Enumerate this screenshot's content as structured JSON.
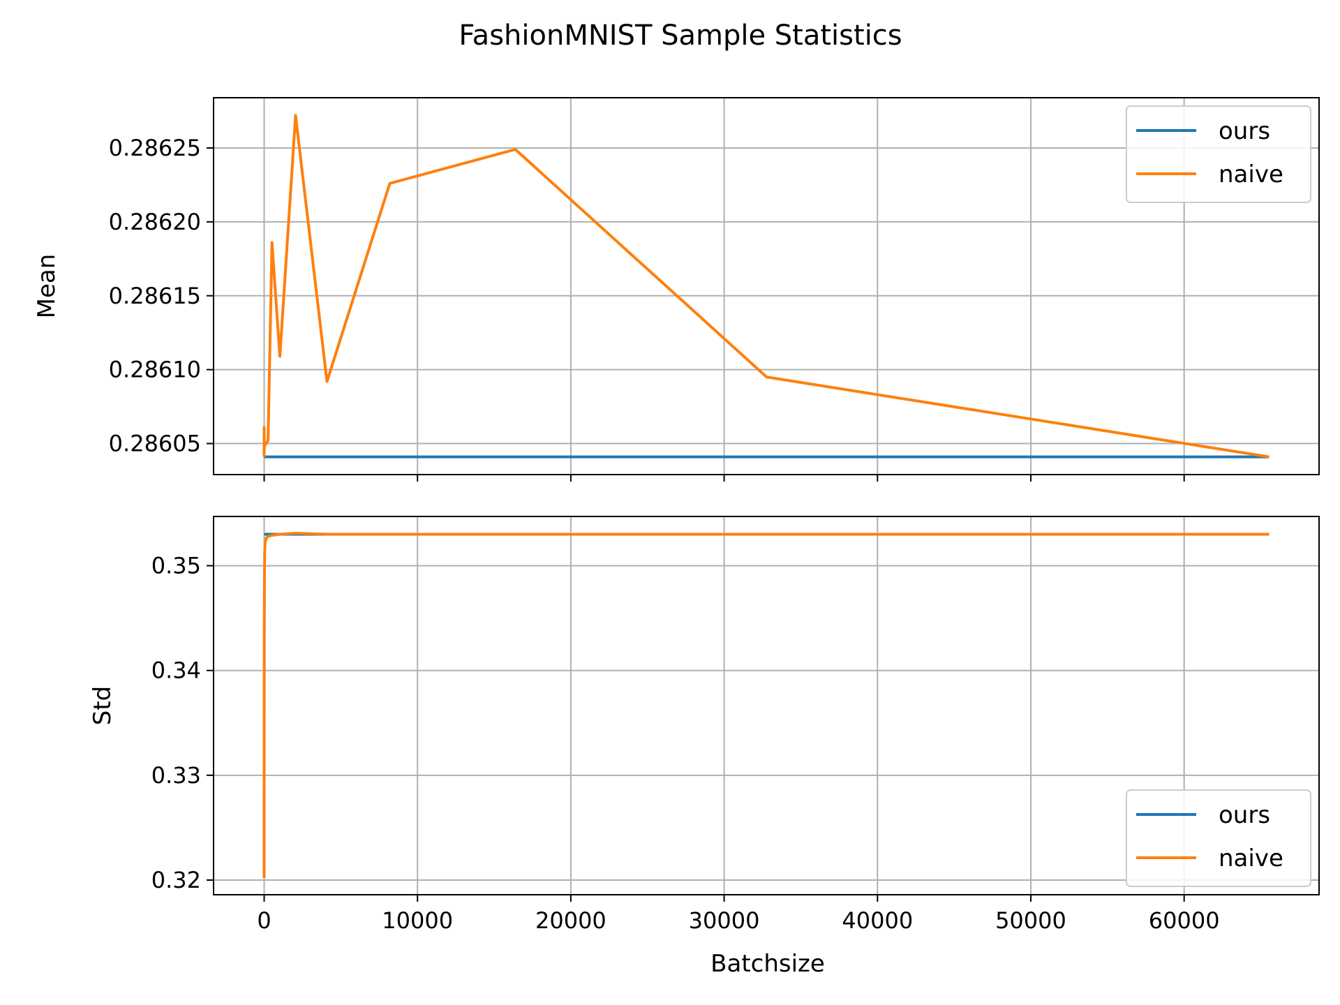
{
  "chart_data": {
    "type": "line",
    "title": "FashionMNIST Sample Statistics",
    "xlabel": "Batchsize",
    "xlim": [
      -3300,
      68800
    ],
    "xticks": [
      0,
      10000,
      20000,
      30000,
      40000,
      50000,
      60000
    ],
    "xtick_labels": [
      "0",
      "10000",
      "20000",
      "30000",
      "40000",
      "50000",
      "60000"
    ],
    "grid": true,
    "subplots": [
      {
        "ylabel": "Mean",
        "ylim": [
          0.286029,
          0.286284
        ],
        "yticks": [
          0.28605,
          0.2861,
          0.28615,
          0.2862,
          0.28625
        ],
        "ytick_labels": [
          "0.28605",
          "0.28610",
          "0.28615",
          "0.28620",
          "0.28625"
        ],
        "legend": "top-right",
        "series": [
          {
            "name": "ours",
            "color": "#1f77b4",
            "x": [
              1,
              65536
            ],
            "y": [
              0.286041,
              0.286041
            ]
          },
          {
            "name": "naive",
            "color": "#ff7f0e",
            "x": [
              1,
              2,
              4,
              8,
              16,
              32,
              64,
              128,
              256,
              512,
              1024,
              2048,
              4096,
              8192,
              16384,
              32768,
              65536
            ],
            "y": [
              0.286041,
              0.286061,
              0.286046,
              0.286052,
              0.286048,
              0.28605,
              0.286049,
              0.28605,
              0.286052,
              0.286186,
              0.286109,
              0.286272,
              0.286092,
              0.286226,
              0.286249,
              0.286095,
              0.286041
            ]
          }
        ]
      },
      {
        "ylabel": "Std",
        "ylim": [
          0.3186,
          0.3547
        ],
        "yticks": [
          0.32,
          0.33,
          0.34,
          0.35
        ],
        "ytick_labels": [
          "0.32",
          "0.33",
          "0.34",
          "0.35"
        ],
        "legend": "bottom-right",
        "series": [
          {
            "name": "ours",
            "color": "#1f77b4",
            "x": [
              1,
              65536
            ],
            "y": [
              0.353,
              0.353
            ]
          },
          {
            "name": "naive",
            "color": "#ff7f0e",
            "x": [
              1,
              2,
              4,
              8,
              16,
              32,
              64,
              128,
              256,
              512,
              1024,
              2048,
              4096,
              8192,
              16384,
              32768,
              65536
            ],
            "y": [
              0.3202,
              0.3275,
              0.337,
              0.344,
              0.3485,
              0.3512,
              0.3522,
              0.3526,
              0.3528,
              0.3529,
              0.353,
              0.3531,
              0.353,
              0.353,
              0.353,
              0.353,
              0.353
            ]
          }
        ]
      }
    ]
  }
}
